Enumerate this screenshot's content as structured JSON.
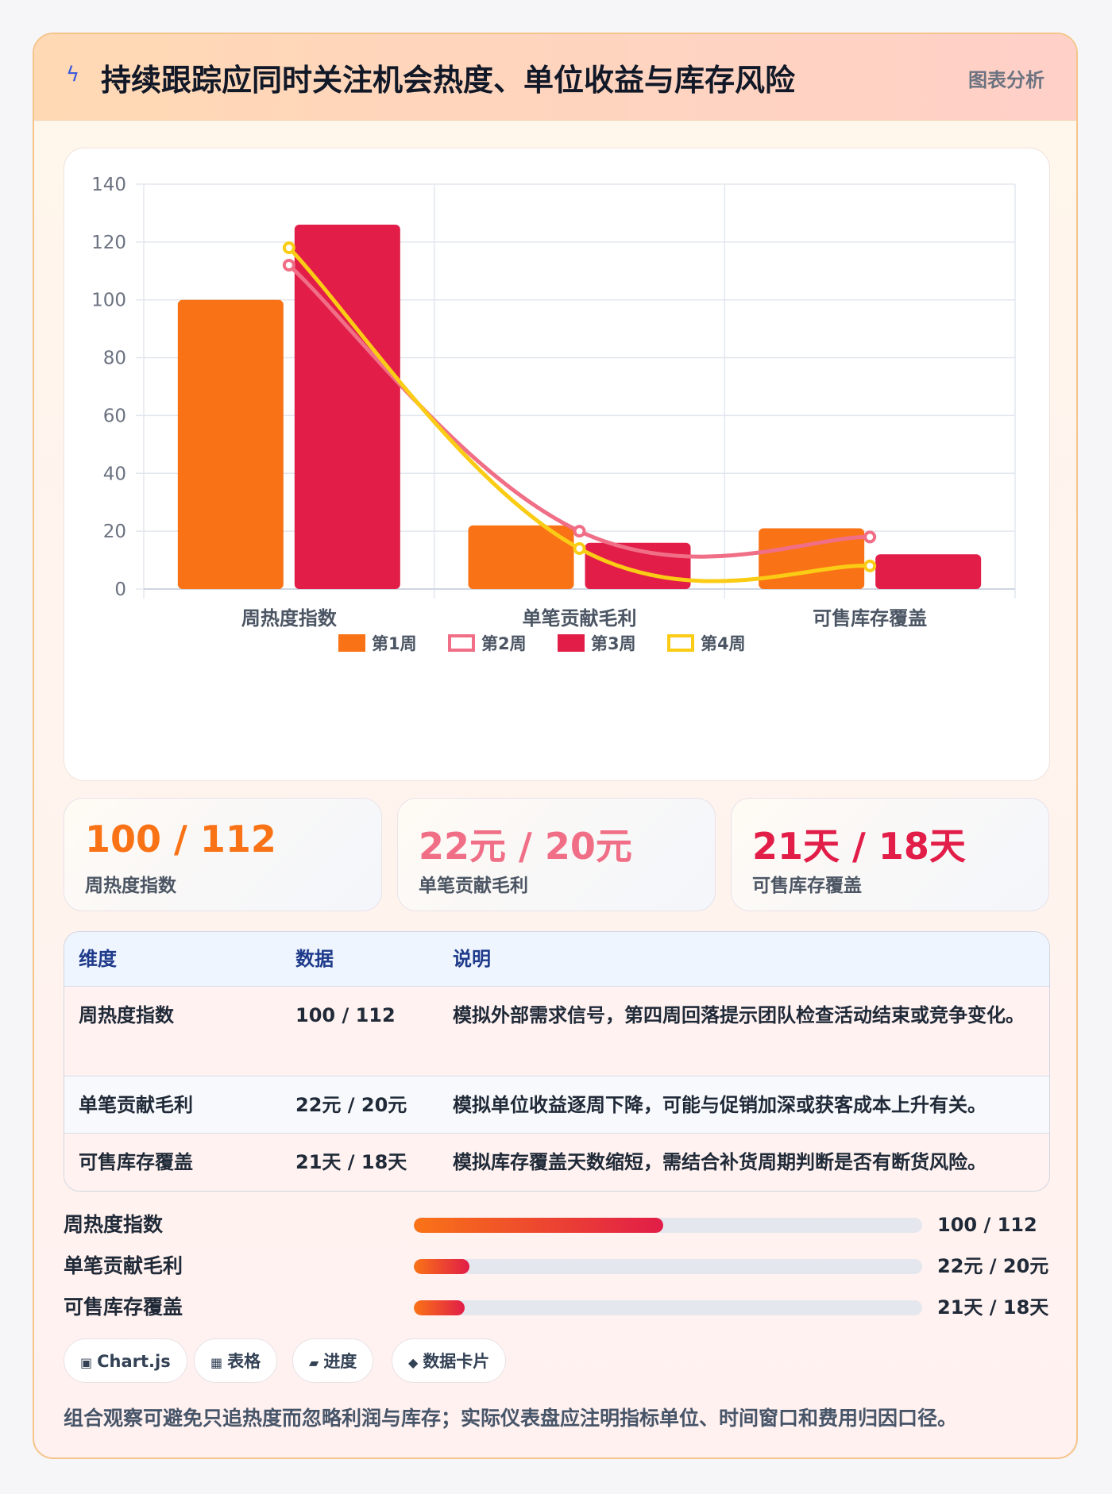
{
  "header": {
    "icon": "lightning-icon",
    "title": "持续跟踪应同时关注机会热度、单位收益与库存风险",
    "tag": "图表分析"
  },
  "chart_data": {
    "type": "bar",
    "categories": [
      "周热度指数",
      "单笔贡献毛利",
      "可售库存覆盖"
    ],
    "ylim": [
      0,
      140
    ],
    "y_ticks": [
      0,
      20,
      40,
      60,
      80,
      100,
      120,
      140
    ],
    "grid": true,
    "legend": "bottom",
    "series": [
      {
        "name": "第1周",
        "kind": "bar",
        "color": "#f97316",
        "values": [
          100,
          22,
          21
        ]
      },
      {
        "name": "第2周",
        "kind": "line",
        "color": "#f06e86",
        "values": [
          112,
          20,
          18
        ]
      },
      {
        "name": "第3周",
        "kind": "bar",
        "color": "#e11d48",
        "values": [
          126,
          16,
          12
        ]
      },
      {
        "name": "第4周",
        "kind": "line",
        "color": "#facc15",
        "values": [
          118,
          14,
          8
        ]
      }
    ]
  },
  "kpis": [
    {
      "value": "100 / 112",
      "label": "周热度指数",
      "color": "#f97316"
    },
    {
      "value": "22元 / 20元",
      "label": "单笔贡献毛利",
      "color": "#f06e86"
    },
    {
      "value": "21天 / 18天",
      "label": "可售库存覆盖",
      "color": "#e11d48"
    }
  ],
  "table": {
    "headers": [
      "维度",
      "数据",
      "说明"
    ],
    "rows": [
      {
        "dim": "周热度指数",
        "data": "100 / 112",
        "desc": "模拟外部需求信号，第四周回落提示团队检查活动结束或竞争变化。"
      },
      {
        "dim": "单笔贡献毛利",
        "data": "22元 / 20元",
        "desc": "模拟单位收益逐周下降，可能与促销加深或获客成本上升有关。"
      },
      {
        "dim": "可售库存覆盖",
        "data": "21天 / 18天",
        "desc": "模拟库存覆盖天数缩短，需结合补货周期判断是否有断货风险。"
      }
    ]
  },
  "progress": [
    {
      "name": "周热度指数",
      "value": "100 / 112",
      "fraction": 0.49
    },
    {
      "name": "单笔贡献毛利",
      "value": "22元 / 20元",
      "fraction": 0.11
    },
    {
      "name": "可售库存覆盖",
      "value": "21天 / 18天",
      "fraction": 0.1
    }
  ],
  "chips": [
    {
      "icon": "▣",
      "label": "Chart.js"
    },
    {
      "icon": "▦",
      "label": "表格"
    },
    {
      "icon": "▰",
      "label": "进度"
    },
    {
      "icon": "◆",
      "label": "数据卡片"
    }
  ],
  "footer": "组合观察可避免只追热度而忽略利润与库存；实际仪表盘应注明指标单位、时间窗口和费用归因口径。"
}
